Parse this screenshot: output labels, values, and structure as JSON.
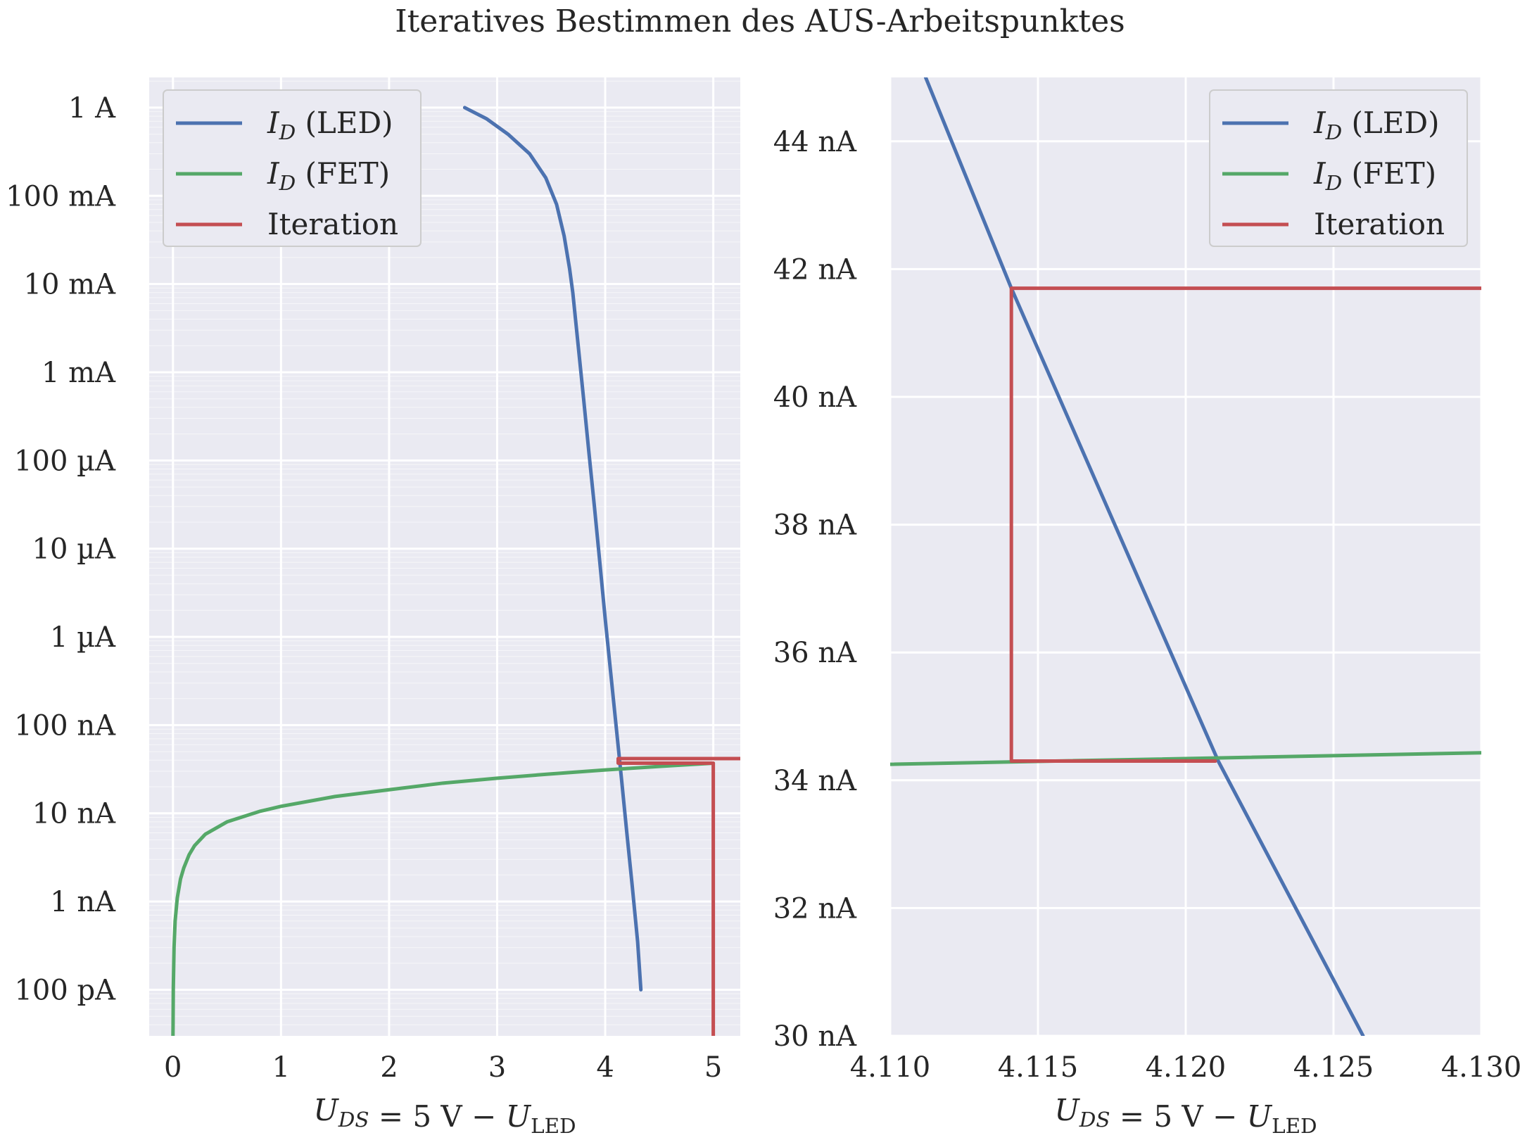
{
  "title": "Iteratives Bestimmen des AUS-Arbeitspunktes",
  "colors": {
    "background": "#eaeaf2",
    "grid": "#ffffff",
    "led": "#4c72b0",
    "fet": "#55a868",
    "iteration": "#c44e52"
  },
  "chart_data": [
    {
      "type": "line",
      "yscale": "log",
      "xlim": [
        -0.22,
        5.25
      ],
      "ylim": [
        3e-11,
        2.2
      ],
      "xticks": [
        0,
        1,
        2,
        3,
        4,
        5
      ],
      "xtick_labels": [
        "0",
        "1",
        "2",
        "3",
        "4",
        "5"
      ],
      "yticks": [
        1e-10,
        1e-09,
        1e-08,
        1e-07,
        1e-06,
        1e-05,
        0.0001,
        0.001,
        0.01,
        0.1,
        1
      ],
      "ytick_labels": [
        "100 pA",
        "1 nA",
        "10 nA",
        "100 nA",
        "1 µA",
        "10 µA",
        "100 µA",
        "1 mA",
        "10 mA",
        "100 mA",
        "1 A"
      ],
      "xlabel": "U_DS = 5 V − U_LED",
      "ylabel": "",
      "grid": true,
      "legend": {
        "position": "top-left",
        "entries": [
          "I_D (LED)",
          "I_D (FET)",
          "Iteration"
        ]
      },
      "series": [
        {
          "name": "I_D (LED)",
          "x": [
            2.7,
            2.9,
            3.1,
            3.3,
            3.45,
            3.55,
            3.62,
            3.67,
            3.7,
            3.75,
            3.8,
            3.85,
            3.9,
            3.95,
            4.0,
            4.05,
            4.1,
            4.15,
            4.2,
            4.25,
            4.3,
            4.33
          ],
          "y": [
            1.0,
            0.75,
            0.5,
            0.3,
            0.16,
            0.08,
            0.035,
            0.015,
            0.008,
            0.002,
            0.0005,
            0.00012,
            3e-05,
            7e-06,
            1.6e-06,
            4e-07,
            1e-07,
            2.5e-08,
            6e-09,
            1.5e-09,
            3.5e-10,
            1e-10
          ]
        },
        {
          "name": "I_D (FET)",
          "x": [
            0.0,
            0.001,
            0.003,
            0.01,
            0.02,
            0.04,
            0.07,
            0.1,
            0.15,
            0.2,
            0.3,
            0.5,
            0.8,
            1.0,
            1.5,
            2.0,
            2.5,
            3.0,
            3.5,
            4.0,
            4.5,
            5.0
          ],
          "y": [
            3e-11,
            4e-11,
            1e-10,
            3e-10,
            6e-10,
            1.1e-09,
            1.8e-09,
            2.4e-09,
            3.4e-09,
            4.3e-09,
            5.8e-09,
            8e-09,
            1.05e-08,
            1.2e-08,
            1.55e-08,
            1.85e-08,
            2.2e-08,
            2.5e-08,
            2.8e-08,
            3.1e-08,
            3.4e-08,
            3.7e-08
          ]
        },
        {
          "name": "Iteration",
          "x": [
            5.0,
            5.0,
            4.12,
            4.12,
            5.25
          ],
          "y": [
            3e-11,
            3.7e-08,
            3.7e-08,
            4.17e-08,
            4.17e-08
          ]
        }
      ]
    },
    {
      "type": "line",
      "yscale": "linear",
      "xlim": [
        4.11,
        4.13
      ],
      "ylim": [
        3e-08,
        4.5e-08
      ],
      "xticks": [
        4.11,
        4.115,
        4.12,
        4.125,
        4.13
      ],
      "xtick_labels": [
        "4.110",
        "4.115",
        "4.120",
        "4.125",
        "4.130"
      ],
      "yticks": [
        3e-08,
        3.2e-08,
        3.4e-08,
        3.6e-08,
        3.8e-08,
        4e-08,
        4.2e-08,
        4.4e-08
      ],
      "ytick_labels": [
        "30 nA",
        "32 nA",
        "34 nA",
        "36 nA",
        "38 nA",
        "40 nA",
        "42 nA",
        "44 nA"
      ],
      "xlabel": "U_DS = 5 V − U_LED",
      "ylabel": "",
      "grid": true,
      "legend": {
        "position": "top-right",
        "entries": [
          "I_D (LED)",
          "I_D (FET)",
          "Iteration"
        ]
      },
      "series": [
        {
          "name": "I_D (LED)",
          "x": [
            4.1112,
            4.1141,
            4.1211,
            4.126
          ],
          "y": [
            4.5e-08,
            4.17e-08,
            3.43e-08,
            3e-08
          ]
        },
        {
          "name": "I_D (FET)",
          "x": [
            4.11,
            4.13
          ],
          "y": [
            3.425e-08,
            3.443e-08
          ]
        },
        {
          "name": "Iteration",
          "x": [
            4.13,
            4.1141,
            4.1141,
            4.121
          ],
          "y": [
            4.17e-08,
            4.17e-08,
            3.43e-08,
            3.43e-08
          ]
        }
      ]
    }
  ]
}
